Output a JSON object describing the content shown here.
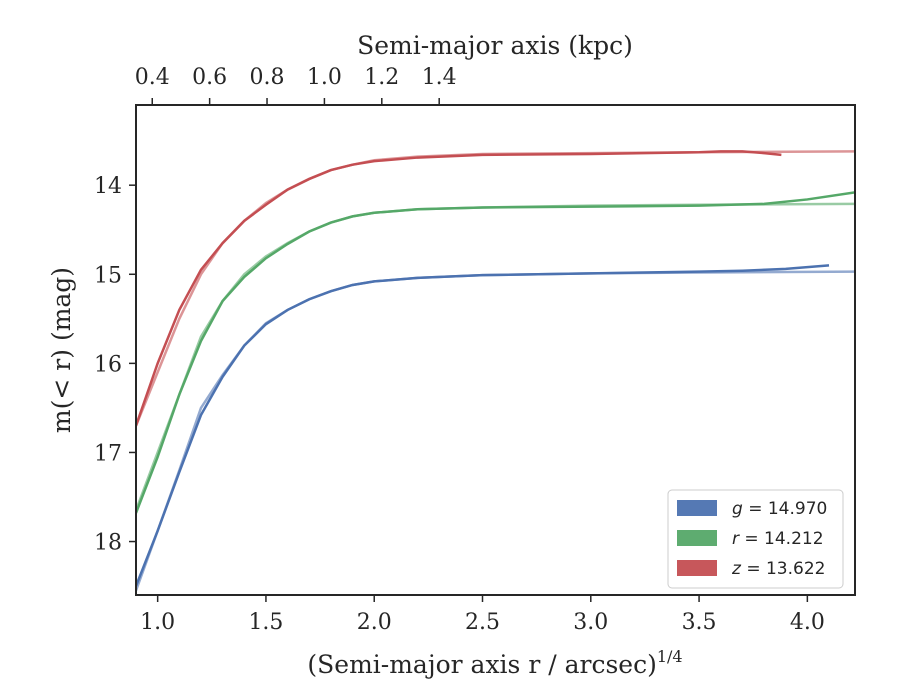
{
  "chart_data": {
    "type": "line",
    "title": "",
    "xlabel": "(Semi-major axis r / arcsec)",
    "xlabel_superscript": "1/4",
    "x2label": "Semi-major axis (kpc)",
    "ylabel": "m(< r) (mag)",
    "xlim": [
      0.9,
      4.22
    ],
    "ylim": [
      18.6,
      13.1
    ],
    "y_inverted": true,
    "x_ticks": [
      "1.0",
      "1.5",
      "2.0",
      "2.5",
      "3.0",
      "3.5",
      "4.0"
    ],
    "y_ticks": [
      "14",
      "15",
      "16",
      "17",
      "18"
    ],
    "x2_ticks": [
      "0.4",
      "0.6",
      "0.8",
      "1.0",
      "1.2",
      "1.4"
    ],
    "x2_tick_positions_xunits": [
      0.975,
      1.24,
      1.505,
      1.77,
      2.035,
      2.3
    ],
    "legend_position": "lower-right",
    "grid": false,
    "series": [
      {
        "name": "g = 14.970",
        "band": "g",
        "value": "14.970",
        "color": "#4c72b0",
        "x": [
          0.9,
          1.0,
          1.1,
          1.2,
          1.3,
          1.4,
          1.5,
          1.6,
          1.7,
          1.8,
          1.9,
          2.0,
          2.2,
          2.5,
          3.0,
          3.5,
          3.7,
          3.9,
          4.1
        ],
        "y": [
          18.5,
          17.88,
          17.22,
          16.58,
          16.15,
          15.8,
          15.56,
          15.4,
          15.28,
          15.19,
          15.12,
          15.08,
          15.04,
          15.01,
          14.99,
          14.97,
          14.96,
          14.94,
          14.9
        ],
        "model_x": [
          0.9,
          1.0,
          1.1,
          1.2,
          1.3,
          1.4,
          1.5,
          1.6,
          1.7,
          1.8,
          1.9,
          2.0,
          2.2,
          2.5,
          3.0,
          3.5,
          4.22
        ],
        "model_y": [
          18.55,
          17.88,
          17.2,
          16.5,
          16.13,
          15.8,
          15.55,
          15.4,
          15.28,
          15.19,
          15.12,
          15.08,
          15.04,
          15.01,
          14.99,
          14.98,
          14.97
        ]
      },
      {
        "name": "r = 14.212",
        "band": "r",
        "value": "14.212",
        "color": "#55a868",
        "x": [
          0.9,
          1.0,
          1.1,
          1.2,
          1.3,
          1.4,
          1.5,
          1.6,
          1.7,
          1.8,
          1.9,
          2.0,
          2.2,
          2.5,
          3.0,
          3.5,
          3.8,
          4.0,
          4.22
        ],
        "y": [
          17.68,
          17.05,
          16.35,
          15.75,
          15.3,
          15.03,
          14.82,
          14.66,
          14.52,
          14.42,
          14.35,
          14.31,
          14.27,
          14.25,
          14.24,
          14.23,
          14.21,
          14.16,
          14.08
        ],
        "model_x": [
          0.9,
          1.0,
          1.1,
          1.2,
          1.3,
          1.4,
          1.5,
          1.6,
          1.7,
          1.8,
          1.9,
          2.0,
          2.2,
          2.5,
          3.0,
          3.5,
          4.22
        ],
        "model_y": [
          17.65,
          17.0,
          16.35,
          15.7,
          15.3,
          15.0,
          14.8,
          14.65,
          14.52,
          14.42,
          14.35,
          14.31,
          14.27,
          14.25,
          14.23,
          14.22,
          14.21
        ]
      },
      {
        "name": "z = 13.622",
        "band": "z",
        "value": "13.622",
        "color": "#c44e52",
        "x": [
          0.9,
          1.0,
          1.1,
          1.2,
          1.3,
          1.4,
          1.5,
          1.6,
          1.7,
          1.8,
          1.9,
          2.0,
          2.2,
          2.5,
          3.0,
          3.5,
          3.6,
          3.7,
          3.8,
          3.88
        ],
        "y": [
          16.7,
          16.0,
          15.4,
          14.95,
          14.65,
          14.4,
          14.22,
          14.05,
          13.93,
          13.83,
          13.77,
          13.73,
          13.69,
          13.66,
          13.65,
          13.63,
          13.62,
          13.62,
          13.64,
          13.66
        ],
        "model_x": [
          0.9,
          1.0,
          1.1,
          1.2,
          1.3,
          1.4,
          1.5,
          1.6,
          1.7,
          1.8,
          1.9,
          2.0,
          2.2,
          2.5,
          3.0,
          3.5,
          4.22
        ],
        "model_y": [
          16.7,
          16.1,
          15.5,
          15.0,
          14.65,
          14.4,
          14.2,
          14.05,
          13.93,
          13.83,
          13.77,
          13.72,
          13.68,
          13.65,
          13.64,
          13.63,
          13.62
        ]
      }
    ]
  }
}
